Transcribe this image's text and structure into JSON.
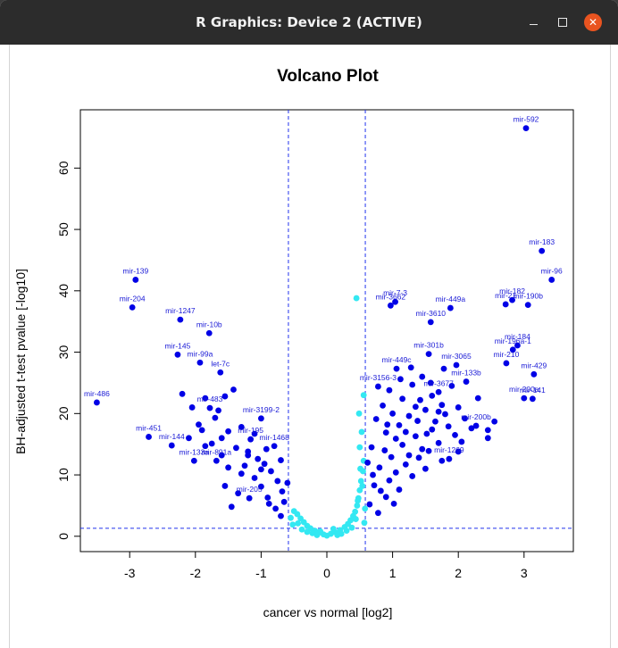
{
  "window": {
    "title": "R Graphics: Device 2 (ACTIVE)",
    "buttons": {
      "minimize": "–",
      "maximize": "□",
      "close": "✕"
    }
  },
  "colors": {
    "significant": "#0000e6",
    "not_significant": "#33e8f2",
    "threshold_line": "#2233ee",
    "titlebar": "#2c2c2c",
    "close_button": "#e95420"
  },
  "chart_data": {
    "type": "scatter",
    "title": "Volcano Plot",
    "xlabel": "cancer vs normal [log2]",
    "ylabel": "BH-adjusted t-test pvalue [-log10]",
    "xlim": [
      -3.75,
      3.75
    ],
    "ylim": [
      -2.5,
      69.5
    ],
    "xticks": [
      -3,
      -2,
      -1,
      0,
      1,
      2,
      3
    ],
    "yticks": [
      0,
      10,
      20,
      30,
      40,
      50,
      60
    ],
    "grid": false,
    "thresholds": {
      "x": [
        -0.585,
        0.585
      ],
      "y": [
        1.3
      ]
    },
    "labeled_points": [
      {
        "x": 3.03,
        "y": 66.5,
        "label": "mir-592"
      },
      {
        "x": 3.27,
        "y": 46.5,
        "label": "mir-183"
      },
      {
        "x": 3.42,
        "y": 41.8,
        "label": "mir-96"
      },
      {
        "x": -2.91,
        "y": 41.8,
        "label": "mir-139"
      },
      {
        "x": -2.96,
        "y": 37.3,
        "label": "mir-204"
      },
      {
        "x": -2.23,
        "y": 35.3,
        "label": "mir-1247"
      },
      {
        "x": -1.79,
        "y": 33.1,
        "label": "mir-10b"
      },
      {
        "x": -2.27,
        "y": 29.6,
        "label": "mir-145"
      },
      {
        "x": -1.93,
        "y": 28.3,
        "label": "mir-99a"
      },
      {
        "x": -1.62,
        "y": 26.7,
        "label": "let-7c"
      },
      {
        "x": -3.5,
        "y": 21.8,
        "label": "mir-486"
      },
      {
        "x": -2.71,
        "y": 16.2,
        "label": "mir-451"
      },
      {
        "x": -2.36,
        "y": 14.8,
        "label": "mir-144"
      },
      {
        "x": -2.02,
        "y": 12.3,
        "label": "mir-133a"
      },
      {
        "x": -1.78,
        "y": 20.9,
        "label": "mir-483"
      },
      {
        "x": -1.0,
        "y": 19.2,
        "label": "mir-3199-2"
      },
      {
        "x": -1.16,
        "y": 15.8,
        "label": "mir-195"
      },
      {
        "x": -0.8,
        "y": 14.7,
        "label": "mir-1468"
      },
      {
        "x": -1.68,
        "y": 12.3,
        "label": "mir-891a"
      },
      {
        "x": -1.18,
        "y": 6.2,
        "label": "mir-205"
      },
      {
        "x": 1.04,
        "y": 38.2,
        "label": "mir-7-3"
      },
      {
        "x": 0.97,
        "y": 37.6,
        "label": "mir-3662"
      },
      {
        "x": 1.88,
        "y": 37.2,
        "label": "mir-449a"
      },
      {
        "x": 1.58,
        "y": 34.9,
        "label": "mir-3610"
      },
      {
        "x": 1.55,
        "y": 29.7,
        "label": "mir-301b"
      },
      {
        "x": 1.97,
        "y": 27.9,
        "label": "mir-3065"
      },
      {
        "x": 1.06,
        "y": 27.3,
        "label": "mir-449c"
      },
      {
        "x": 0.78,
        "y": 24.4,
        "label": "mir-3156-3"
      },
      {
        "x": 2.12,
        "y": 25.2,
        "label": "mir-133b"
      },
      {
        "x": 1.7,
        "y": 23.5,
        "label": "mir-3677"
      },
      {
        "x": 2.27,
        "y": 18.0,
        "label": "mir-200b"
      },
      {
        "x": 1.86,
        "y": 12.6,
        "label": "mir-1269"
      },
      {
        "x": 2.82,
        "y": 38.5,
        "label": "mir-182"
      },
      {
        "x": 2.72,
        "y": 37.8,
        "label": "mir-21"
      },
      {
        "x": 3.06,
        "y": 37.7,
        "label": "mir-190b"
      },
      {
        "x": 2.9,
        "y": 31.1,
        "label": "mir-184"
      },
      {
        "x": 2.83,
        "y": 30.4,
        "label": "mir-196a-1"
      },
      {
        "x": 2.73,
        "y": 28.2,
        "label": "mir-210"
      },
      {
        "x": 3.15,
        "y": 26.4,
        "label": "mir-429"
      },
      {
        "x": 3.0,
        "y": 22.5,
        "label": "mir-200a"
      },
      {
        "x": 3.13,
        "y": 22.4,
        "label": "mir-141"
      }
    ],
    "unlabeled_significant_points": [
      {
        "x": -2.2,
        "y": 23.2
      },
      {
        "x": -2.05,
        "y": 21.0
      },
      {
        "x": -1.85,
        "y": 22.5
      },
      {
        "x": -1.7,
        "y": 19.3
      },
      {
        "x": -1.55,
        "y": 22.8
      },
      {
        "x": -1.95,
        "y": 18.2
      },
      {
        "x": -1.5,
        "y": 17.1
      },
      {
        "x": -1.42,
        "y": 23.9
      },
      {
        "x": -1.6,
        "y": 16.0
      },
      {
        "x": -1.3,
        "y": 17.8
      },
      {
        "x": -2.1,
        "y": 16.0
      },
      {
        "x": -1.75,
        "y": 15.1
      },
      {
        "x": -1.85,
        "y": 14.7
      },
      {
        "x": -1.38,
        "y": 14.4
      },
      {
        "x": -1.2,
        "y": 13.2
      },
      {
        "x": -1.05,
        "y": 12.6
      },
      {
        "x": -0.95,
        "y": 11.8
      },
      {
        "x": -1.5,
        "y": 11.2
      },
      {
        "x": -1.3,
        "y": 10.2
      },
      {
        "x": -0.85,
        "y": 10.6
      },
      {
        "x": -1.1,
        "y": 9.5
      },
      {
        "x": -0.75,
        "y": 9.0
      },
      {
        "x": -1.55,
        "y": 8.2
      },
      {
        "x": -1.0,
        "y": 8.1
      },
      {
        "x": -0.68,
        "y": 7.3
      },
      {
        "x": -1.35,
        "y": 7.0
      },
      {
        "x": -0.9,
        "y": 6.3
      },
      {
        "x": -1.45,
        "y": 4.8
      },
      {
        "x": -0.65,
        "y": 5.6
      },
      {
        "x": -0.78,
        "y": 4.5
      },
      {
        "x": -1.2,
        "y": 13.8
      },
      {
        "x": -0.92,
        "y": 14.2
      },
      {
        "x": -1.25,
        "y": 11.5
      },
      {
        "x": -1.65,
        "y": 20.5
      },
      {
        "x": -1.9,
        "y": 17.3
      },
      {
        "x": -1.1,
        "y": 16.7
      },
      {
        "x": -0.7,
        "y": 12.4
      },
      {
        "x": -1.0,
        "y": 10.9
      },
      {
        "x": -0.6,
        "y": 8.7
      },
      {
        "x": -0.7,
        "y": 3.3
      },
      {
        "x": -0.88,
        "y": 5.3
      },
      {
        "x": -1.6,
        "y": 13.2
      },
      {
        "x": 0.65,
        "y": 5.2
      },
      {
        "x": 0.72,
        "y": 8.3
      },
      {
        "x": 0.8,
        "y": 11.2
      },
      {
        "x": 0.68,
        "y": 14.5
      },
      {
        "x": 0.9,
        "y": 16.9
      },
      {
        "x": 0.75,
        "y": 19.1
      },
      {
        "x": 0.85,
        "y": 21.3
      },
      {
        "x": 0.95,
        "y": 23.8
      },
      {
        "x": 1.0,
        "y": 20.0
      },
      {
        "x": 1.1,
        "y": 18.1
      },
      {
        "x": 1.15,
        "y": 22.4
      },
      {
        "x": 1.25,
        "y": 19.6
      },
      {
        "x": 1.3,
        "y": 24.7
      },
      {
        "x": 1.35,
        "y": 21.1
      },
      {
        "x": 1.45,
        "y": 26.0
      },
      {
        "x": 1.5,
        "y": 20.6
      },
      {
        "x": 1.6,
        "y": 22.9
      },
      {
        "x": 1.65,
        "y": 18.7
      },
      {
        "x": 1.75,
        "y": 21.4
      },
      {
        "x": 1.8,
        "y": 19.9
      },
      {
        "x": 1.9,
        "y": 24.5
      },
      {
        "x": 2.0,
        "y": 21.0
      },
      {
        "x": 2.1,
        "y": 19.2
      },
      {
        "x": 2.2,
        "y": 17.6
      },
      {
        "x": 2.45,
        "y": 17.3
      },
      {
        "x": 2.45,
        "y": 16.0
      },
      {
        "x": 1.95,
        "y": 16.5
      },
      {
        "x": 1.7,
        "y": 15.2
      },
      {
        "x": 1.55,
        "y": 13.9
      },
      {
        "x": 1.4,
        "y": 12.8
      },
      {
        "x": 1.2,
        "y": 11.7
      },
      {
        "x": 1.05,
        "y": 10.4
      },
      {
        "x": 0.95,
        "y": 9.1
      },
      {
        "x": 1.3,
        "y": 9.8
      },
      {
        "x": 1.5,
        "y": 11.0
      },
      {
        "x": 1.75,
        "y": 12.3
      },
      {
        "x": 2.0,
        "y": 13.8
      },
      {
        "x": 1.1,
        "y": 7.6
      },
      {
        "x": 0.9,
        "y": 6.4
      },
      {
        "x": 0.78,
        "y": 3.8
      },
      {
        "x": 1.15,
        "y": 14.9
      },
      {
        "x": 1.35,
        "y": 16.3
      },
      {
        "x": 1.45,
        "y": 14.2
      },
      {
        "x": 1.6,
        "y": 17.4
      },
      {
        "x": 1.25,
        "y": 13.2
      },
      {
        "x": 0.98,
        "y": 12.9
      },
      {
        "x": 0.88,
        "y": 14.0
      },
      {
        "x": 1.05,
        "y": 15.9
      },
      {
        "x": 1.2,
        "y": 17.0
      },
      {
        "x": 1.38,
        "y": 18.8
      },
      {
        "x": 1.52,
        "y": 16.7
      },
      {
        "x": 1.85,
        "y": 17.9
      },
      {
        "x": 2.05,
        "y": 15.4
      },
      {
        "x": 1.7,
        "y": 20.3
      },
      {
        "x": 0.7,
        "y": 10.0
      },
      {
        "x": 0.82,
        "y": 7.4
      },
      {
        "x": 1.02,
        "y": 5.3
      },
      {
        "x": 0.62,
        "y": 12.0
      },
      {
        "x": 1.28,
        "y": 27.5
      },
      {
        "x": 1.42,
        "y": 22.2
      },
      {
        "x": 0.92,
        "y": 18.2
      },
      {
        "x": 1.12,
        "y": 25.6
      },
      {
        "x": 2.3,
        "y": 22.5
      },
      {
        "x": 2.55,
        "y": 18.7
      },
      {
        "x": 1.58,
        "y": 25.0
      },
      {
        "x": 1.78,
        "y": 27.3
      }
    ],
    "not_significant_points": [
      {
        "x": 0.0,
        "y": 0.1
      },
      {
        "x": -0.05,
        "y": 0.3
      },
      {
        "x": 0.06,
        "y": 0.4
      },
      {
        "x": -0.12,
        "y": 0.6
      },
      {
        "x": 0.12,
        "y": 0.7
      },
      {
        "x": -0.18,
        "y": 0.9
      },
      {
        "x": 0.2,
        "y": 1.0
      },
      {
        "x": -0.25,
        "y": 1.3
      },
      {
        "x": 0.27,
        "y": 1.5
      },
      {
        "x": -0.3,
        "y": 1.7
      },
      {
        "x": 0.32,
        "y": 2.0
      },
      {
        "x": -0.35,
        "y": 2.3
      },
      {
        "x": 0.36,
        "y": 2.6
      },
      {
        "x": -0.4,
        "y": 2.9
      },
      {
        "x": 0.4,
        "y": 3.3
      },
      {
        "x": -0.45,
        "y": 3.6
      },
      {
        "x": 0.43,
        "y": 4.0
      },
      {
        "x": -0.5,
        "y": 4.1
      },
      {
        "x": 0.46,
        "y": 5.0
      },
      {
        "x": 0.48,
        "y": 6.2
      },
      {
        "x": 0.5,
        "y": 7.5
      },
      {
        "x": 0.52,
        "y": 9.0
      },
      {
        "x": 0.55,
        "y": 10.6
      },
      {
        "x": 0.56,
        "y": 12.3
      },
      {
        "x": 0.5,
        "y": 14.5
      },
      {
        "x": 0.53,
        "y": 17.0
      },
      {
        "x": 0.49,
        "y": 20.0
      },
      {
        "x": 0.56,
        "y": 23.0
      },
      {
        "x": 0.45,
        "y": 38.8
      },
      {
        "x": -0.1,
        "y": 0.8
      },
      {
        "x": 0.1,
        "y": 1.2
      },
      {
        "x": -0.22,
        "y": 0.5
      },
      {
        "x": 0.22,
        "y": 0.4
      },
      {
        "x": -0.55,
        "y": 3.0
      },
      {
        "x": -0.52,
        "y": 1.9
      },
      {
        "x": 0.58,
        "y": 4.5
      },
      {
        "x": 0.57,
        "y": 2.2
      },
      {
        "x": -0.38,
        "y": 1.1
      },
      {
        "x": 0.38,
        "y": 1.4
      },
      {
        "x": -0.15,
        "y": 0.2
      },
      {
        "x": 0.16,
        "y": 0.2
      },
      {
        "x": 0.3,
        "y": 0.9
      },
      {
        "x": -0.3,
        "y": 0.7
      },
      {
        "x": 0.44,
        "y": 2.8
      },
      {
        "x": -0.44,
        "y": 2.1
      },
      {
        "x": 0.51,
        "y": 11.0
      },
      {
        "x": 0.54,
        "y": 8.2
      },
      {
        "x": 0.47,
        "y": 5.8
      }
    ]
  }
}
